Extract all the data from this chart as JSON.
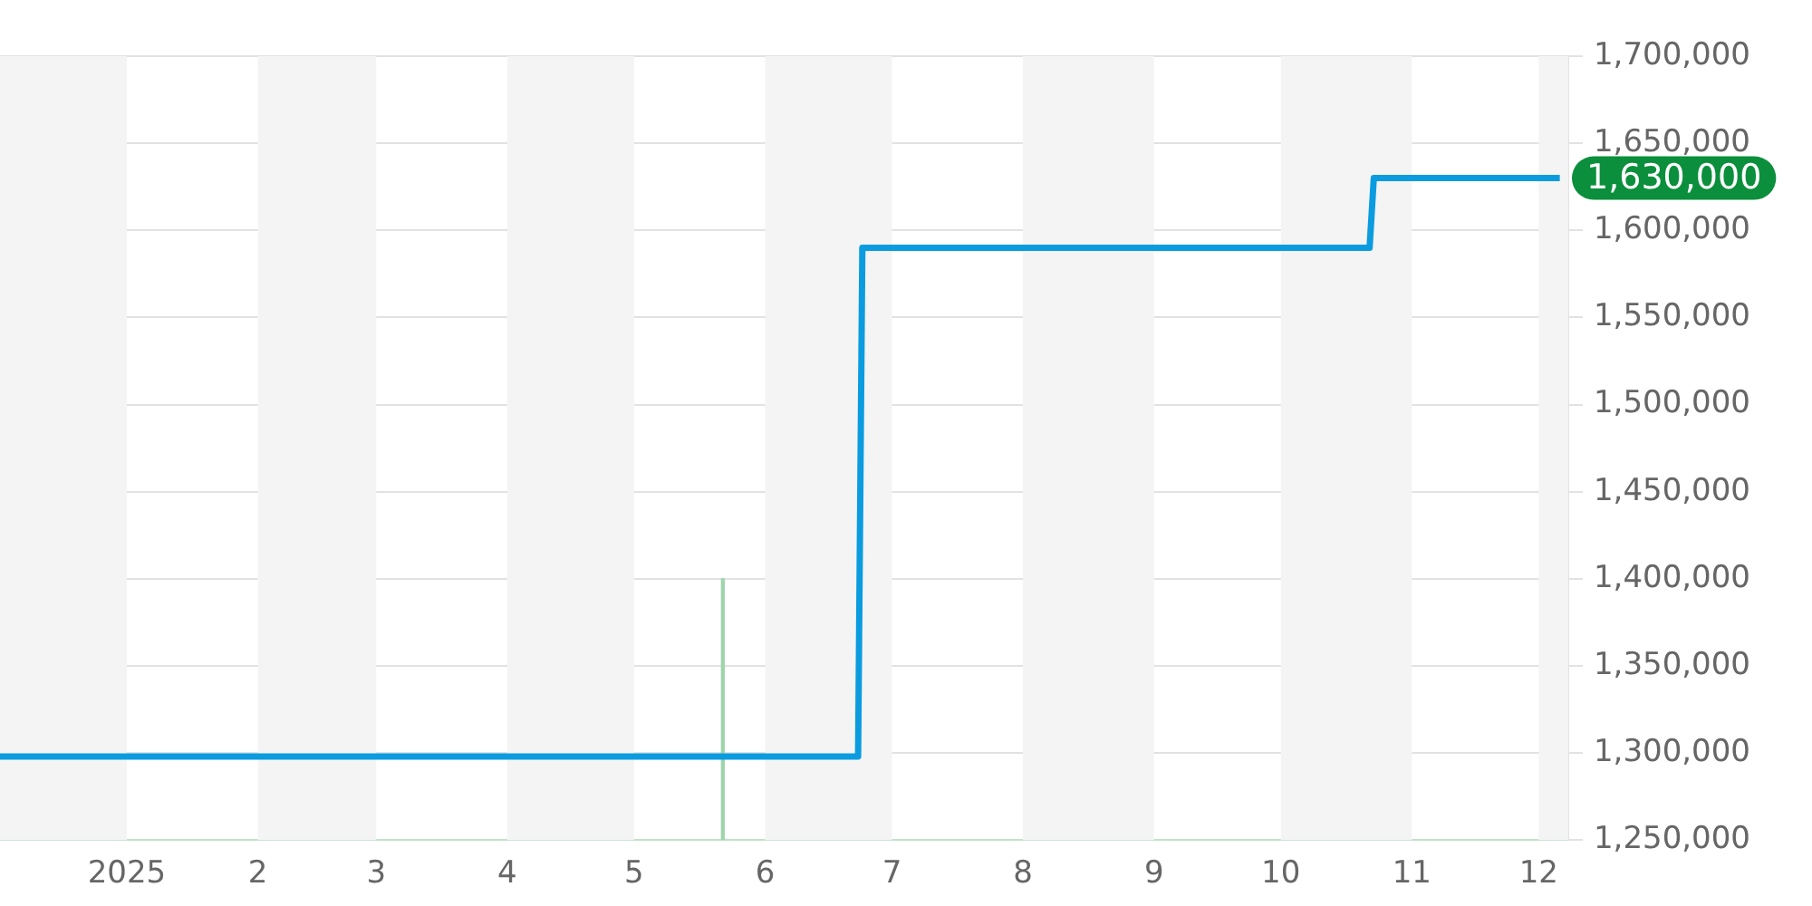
{
  "chart_data": {
    "type": "line",
    "x": [
      "2024-12-02",
      "2025-06-23",
      "2025-06-24",
      "2025-10-22",
      "2025-10-23",
      "2025-12-06"
    ],
    "series": [
      {
        "color": "#0b9ce0",
        "values": [
          1298000,
          1298000,
          1590000,
          1590000,
          1630000,
          1630000
        ]
      },
      {
        "type": "bar",
        "color": "#9fd4ad",
        "x": [
          "2025-05-22"
        ],
        "values": [
          1400000
        ]
      }
    ],
    "xlim": [
      "2024-12-02",
      "2025-12-08"
    ],
    "xticks": [
      {
        "value": "2025-01-01",
        "label": "2025"
      },
      {
        "value": "2025-02-01",
        "label": "2"
      },
      {
        "value": "2025-03-01",
        "label": "3"
      },
      {
        "value": "2025-04-01",
        "label": "4"
      },
      {
        "value": "2025-05-01",
        "label": "5"
      },
      {
        "value": "2025-06-01",
        "label": "6"
      },
      {
        "value": "2025-07-01",
        "label": "7"
      },
      {
        "value": "2025-08-01",
        "label": "8"
      },
      {
        "value": "2025-09-01",
        "label": "9"
      },
      {
        "value": "2025-10-01",
        "label": "10"
      },
      {
        "value": "2025-11-01",
        "label": "11"
      },
      {
        "value": "2025-12-01",
        "label": "12"
      }
    ],
    "ylim": [
      1250000,
      1700000
    ],
    "yticks": [
      {
        "value": 1250000,
        "label": "1,250,000"
      },
      {
        "value": 1300000,
        "label": "1,300,000"
      },
      {
        "value": 1350000,
        "label": "1,350,000"
      },
      {
        "value": 1400000,
        "label": "1,400,000"
      },
      {
        "value": 1450000,
        "label": "1,450,000"
      },
      {
        "value": 1500000,
        "label": "1,500,000"
      },
      {
        "value": 1550000,
        "label": "1,550,000"
      },
      {
        "value": 1600000,
        "label": "1,600,000"
      },
      {
        "value": 1650000,
        "label": "1,650,000"
      },
      {
        "value": 1700000,
        "label": "1,700,000"
      }
    ],
    "bands": [
      {
        "axis": "x",
        "from": "2024-12-02",
        "to": "2025-01-01",
        "color": "#f4f4f4"
      },
      {
        "axis": "x",
        "from": "2025-02-01",
        "to": "2025-03-01",
        "color": "#f4f4f4"
      },
      {
        "axis": "x",
        "from": "2025-04-01",
        "to": "2025-05-01",
        "color": "#f4f4f4"
      },
      {
        "axis": "x",
        "from": "2025-06-01",
        "to": "2025-07-01",
        "color": "#f4f4f4"
      },
      {
        "axis": "x",
        "from": "2025-08-01",
        "to": "2025-09-01",
        "color": "#f4f4f4"
      },
      {
        "axis": "x",
        "from": "2025-10-01",
        "to": "2025-11-01",
        "color": "#f4f4f4"
      },
      {
        "axis": "x",
        "from": "2025-12-01",
        "to": "2025-12-08",
        "color": "#f4f4f4"
      }
    ],
    "annotations": [
      {
        "text": "1,630,000",
        "x": "2025-12-06",
        "y": 1630000
      }
    ],
    "grid": "y",
    "legend": false,
    "marker": "none",
    "line_style": "solid"
  }
}
